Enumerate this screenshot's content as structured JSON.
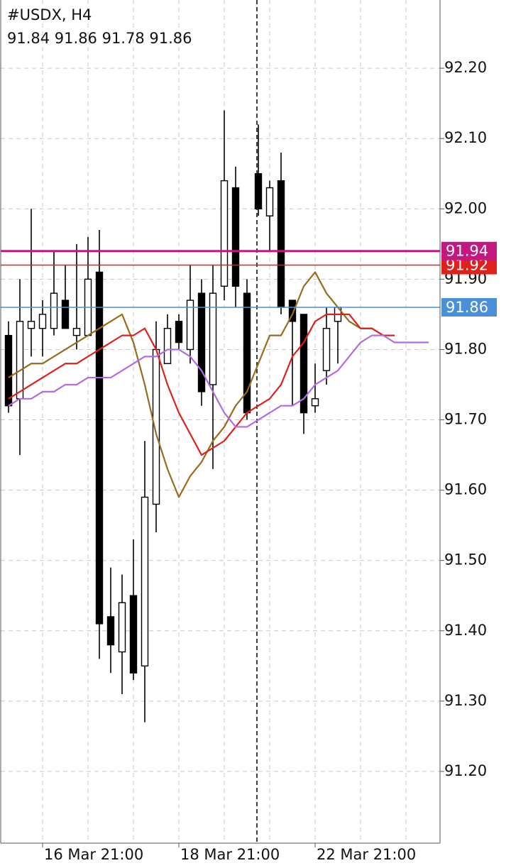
{
  "chart_data": {
    "type": "candlestick",
    "title": "#USDX, H4",
    "subtitle": "91.84 91.86 91.78 91.86",
    "categories": [
      null,
      null,
      null,
      "16 Mar 21:00",
      null,
      null,
      null,
      null,
      null,
      null,
      null,
      null,
      null,
      null,
      null,
      "18 Mar 21:00",
      null,
      null,
      null,
      null,
      null,
      null,
      null,
      null,
      null,
      null,
      null,
      "22 Mar 21:00",
      null,
      null,
      null,
      null,
      null,
      null,
      null,
      null,
      null,
      null
    ],
    "open": [
      91.82,
      91.73,
      91.83,
      91.83,
      91.83,
      91.87,
      91.82,
      91.82,
      91.91,
      91.42,
      91.37,
      91.45,
      91.35,
      91.58,
      91.78,
      91.84,
      91.8,
      91.88,
      91.75,
      91.89,
      92.03,
      91.88,
      92.05,
      91.99,
      92.04,
      91.87,
      91.85,
      91.72,
      91.77,
      91.84,
      null,
      null,
      null,
      null,
      null,
      null,
      null,
      null
    ],
    "high": [
      91.84,
      91.9,
      92.0,
      91.87,
      91.94,
      91.92,
      91.95,
      91.96,
      91.97,
      91.49,
      91.48,
      91.53,
      91.67,
      91.84,
      91.85,
      91.85,
      91.92,
      91.9,
      91.92,
      92.14,
      92.06,
      91.9,
      92.12,
      92.04,
      92.08,
      91.87,
      91.85,
      91.78,
      91.86,
      91.86,
      null,
      null,
      null,
      null,
      null,
      null,
      null,
      null
    ],
    "low": [
      91.71,
      91.65,
      91.79,
      91.79,
      91.82,
      91.83,
      91.8,
      91.82,
      91.36,
      91.34,
      91.31,
      91.33,
      91.27,
      91.54,
      91.78,
      91.8,
      91.78,
      91.72,
      91.63,
      91.87,
      91.86,
      91.7,
      91.99,
      91.94,
      91.85,
      91.72,
      91.68,
      91.71,
      91.75,
      91.78,
      null,
      null,
      null,
      null,
      null,
      null,
      null,
      null
    ],
    "close": [
      91.72,
      91.84,
      91.84,
      91.85,
      91.88,
      91.83,
      91.83,
      91.9,
      91.41,
      91.38,
      91.44,
      91.34,
      91.59,
      91.8,
      91.83,
      91.81,
      91.87,
      91.74,
      91.88,
      92.04,
      91.89,
      91.71,
      92.0,
      92.03,
      91.86,
      91.84,
      91.71,
      91.73,
      91.83,
      91.86,
      null,
      null,
      null,
      null,
      null,
      null,
      null,
      null
    ],
    "up_color": "#ffffff",
    "down_color": "#000000",
    "lines": [
      {
        "color": "#9a6a1e",
        "values": [
          91.76,
          91.77,
          91.78,
          91.78,
          91.79,
          91.8,
          91.81,
          91.82,
          91.83,
          91.84,
          91.85,
          91.81,
          91.75,
          91.68,
          91.63,
          91.59,
          91.62,
          91.64,
          91.67,
          91.69,
          91.72,
          91.74,
          91.78,
          91.82,
          91.82,
          91.85,
          91.89,
          91.91,
          91.88,
          91.86,
          91.84,
          91.83,
          91.83,
          91.82,
          null,
          null,
          null,
          null
        ]
      },
      {
        "color": "#e0201b",
        "values": [
          91.73,
          91.74,
          91.75,
          91.76,
          91.77,
          91.78,
          91.78,
          91.79,
          91.8,
          91.81,
          91.82,
          91.82,
          91.83,
          91.8,
          91.75,
          91.71,
          91.68,
          91.65,
          91.66,
          91.67,
          91.69,
          91.71,
          91.72,
          91.73,
          91.75,
          91.79,
          91.81,
          91.84,
          91.85,
          91.85,
          91.85,
          91.83,
          91.83,
          91.82,
          91.82,
          null,
          null,
          null
        ]
      },
      {
        "color": "#b36ae2",
        "values": [
          91.72,
          91.73,
          91.73,
          91.74,
          91.74,
          91.75,
          91.75,
          91.76,
          91.76,
          91.76,
          91.77,
          91.78,
          91.79,
          91.79,
          91.8,
          91.8,
          91.79,
          91.77,
          91.74,
          91.71,
          91.69,
          91.69,
          91.7,
          91.71,
          91.72,
          91.72,
          91.73,
          91.75,
          91.76,
          91.77,
          91.79,
          91.81,
          91.82,
          91.82,
          91.81,
          91.81,
          91.81,
          91.81
        ]
      }
    ],
    "levels": [
      {
        "value": 91.92,
        "color": "#e0201b"
      },
      {
        "value": 91.94,
        "color": "#c2187f"
      },
      {
        "value": 91.86,
        "color": "#4a90d9"
      }
    ],
    "ylim": [
      91.098,
      92.297
    ],
    "yticks": [
      {
        "value": 92.2,
        "label": "92.20"
      },
      {
        "value": 92.1,
        "label": "92.10"
      },
      {
        "value": 92,
        "label": "92.00"
      },
      {
        "value": 91.9,
        "label": "91.90"
      },
      {
        "value": 91.8,
        "label": "91.80"
      },
      {
        "value": 91.7,
        "label": "91.70"
      },
      {
        "value": 91.6,
        "label": "91.60"
      },
      {
        "value": 91.5,
        "label": "91.50"
      },
      {
        "value": 91.4,
        "label": "91.40"
      },
      {
        "value": 91.3,
        "label": "91.30"
      },
      {
        "value": 91.2,
        "label": "91.20"
      }
    ],
    "grid": true
  }
}
